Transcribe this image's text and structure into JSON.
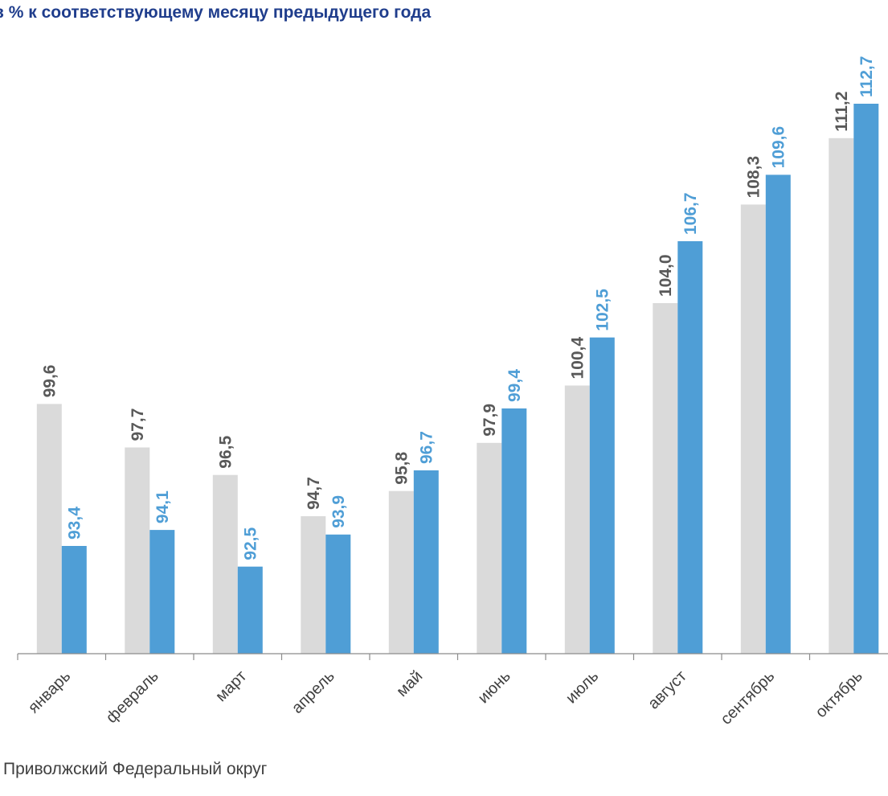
{
  "title": "в % к соответствующему месяцу предыдущего года",
  "footnote": "Приволжский Федеральный округ",
  "colors": {
    "series_a": "#DADADA",
    "series_b": "#4F9ED6",
    "label_a": "#595959",
    "label_b": "#4F9ED6",
    "axis": "#8C8C8C",
    "title": "#1F3D8C",
    "tick_text": "#404040"
  },
  "chart_data": {
    "type": "bar",
    "title": "в % к соответствующему месяцу предыдущего года",
    "xlabel": "",
    "ylabel": "",
    "legend": "none",
    "grid": false,
    "ylim": [
      88.7,
      114.0
    ],
    "categories": [
      "январь",
      "февраль",
      "март",
      "апрель",
      "май",
      "июнь",
      "июль",
      "август",
      "сентябрь",
      "октябрь"
    ],
    "series": [
      {
        "values": [
          99.6,
          97.7,
          96.5,
          94.7,
          95.8,
          97.9,
          100.4,
          104.0,
          108.3,
          111.2
        ],
        "labels": [
          "99,6",
          "97,7",
          "96,5",
          "94,7",
          "95,8",
          "97,9",
          "100,4",
          "104,0",
          "108,3",
          "111,2"
        ]
      },
      {
        "values": [
          93.4,
          94.1,
          92.5,
          93.9,
          96.7,
          99.4,
          102.5,
          106.7,
          109.6,
          112.7
        ],
        "labels": [
          "93,4",
          "94,1",
          "92,5",
          "93,9",
          "96,7",
          "99,4",
          "102,5",
          "106,7",
          "109,6",
          "112,7"
        ]
      }
    ]
  }
}
